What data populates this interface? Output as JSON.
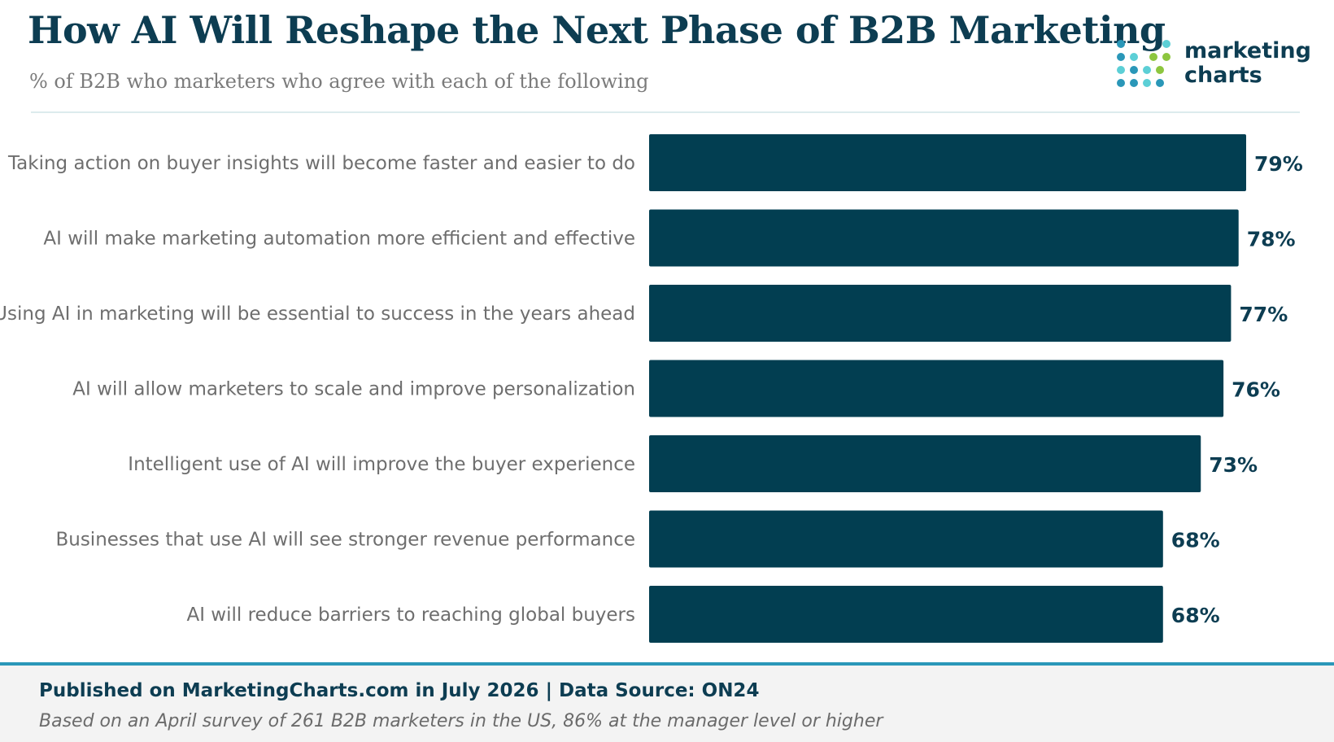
{
  "header": {
    "title": "How AI Will Reshape the Next Phase of B2B Marketing",
    "subtitle": "% of B2B who marketers  who agree with each of the following"
  },
  "logo": {
    "line1": "marketing",
    "line2": "charts",
    "colors": [
      "#2a97b8",
      "#5ccfd6",
      "#8dc63f"
    ]
  },
  "chart_data": {
    "type": "bar",
    "orientation": "horizontal",
    "categories": [
      "Taking action on buyer insights will become faster and easier to do",
      "AI will make marketing automation more efficient and effective",
      "Using AI in marketing will be essential to success in the years ahead",
      "AI will allow marketers to scale and improve personalization",
      "Intelligent use of AI will improve the buyer experience",
      "Businesses that use AI will see stronger revenue performance",
      "AI will reduce barriers to reaching global buyers"
    ],
    "values": [
      79,
      78,
      77,
      76,
      73,
      68,
      68
    ],
    "data_labels": [
      "79%",
      "78%",
      "77%",
      "76%",
      "73%",
      "68%",
      "68%"
    ],
    "xlim": [
      0,
      79
    ],
    "bar_color": "#023e51",
    "grid": false,
    "legend": "none"
  },
  "footer": {
    "published": "Published on MarketingCharts.com in July 2026 | Data Source: ON24",
    "note": "Based on an April survey of 261 B2B marketers in the US, 86% at the manager level or higher"
  }
}
